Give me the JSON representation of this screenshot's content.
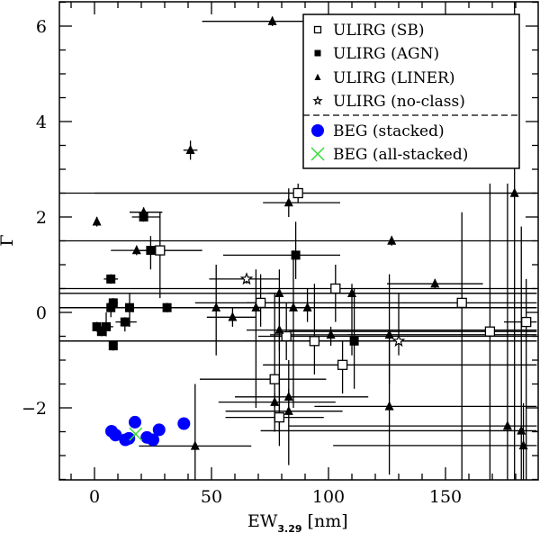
{
  "chart_data": {
    "type": "scatter",
    "title": "",
    "xlabel": "EW",
    "xlabel_sub": "3.29",
    "xlabel_unit": "[nm]",
    "ylabel": "Γ",
    "xlim": [
      -15,
      189
    ],
    "ylim": [
      -3.5,
      6.5
    ],
    "xticks_major": [
      0,
      50,
      100,
      150
    ],
    "yticks_major": [
      -2,
      0,
      2,
      4,
      6
    ],
    "grid": false,
    "legend_position": "upper right",
    "legend": [
      {
        "label": "ULIRG (SB)",
        "marker": "open-square",
        "color": "#000000"
      },
      {
        "label": "ULIRG (AGN)",
        "marker": "filled-square",
        "color": "#000000"
      },
      {
        "label": "ULIRG (LINER)",
        "marker": "filled-triangle",
        "color": "#000000"
      },
      {
        "label": "ULIRG (no-class)",
        "marker": "open-star",
        "color": "#000000"
      },
      {
        "label": "BEG (stacked)",
        "marker": "filled-circle",
        "color": "#0000ff"
      },
      {
        "label": "BEG (all-stacked)",
        "marker": "cross",
        "color": "#33dd33"
      }
    ],
    "series": [
      {
        "name": "ULIRG (SB)",
        "marker": "open-square",
        "points": [
          {
            "x": 28,
            "y": 1.3,
            "xerr": [
              18,
              46
            ],
            "yerr": [
              0.3,
              2.1
            ]
          },
          {
            "x": 87,
            "y": 2.5,
            "xerr": [
              0,
              189
            ],
            "yerr": [
              2.3,
              2.7
            ]
          },
          {
            "x": 71,
            "y": 0.2,
            "xerr": [
              65,
              85
            ],
            "yerr": [
              -0.3,
              0.8
            ]
          },
          {
            "x": 103,
            "y": 0.5,
            "xerr": [
              -15,
              189
            ],
            "yerr": [
              -0.2,
              1.0
            ]
          },
          {
            "x": 94,
            "y": -0.6,
            "xerr": [
              64,
              110
            ],
            "yerr": [
              -1.3,
              0.6
            ]
          },
          {
            "x": 82,
            "y": -0.5,
            "xerr": [
              70,
              189
            ],
            "yerr": [
              -1.0,
              0.2
            ]
          },
          {
            "x": 106,
            "y": -1.1,
            "xerr": [
              72,
              189
            ],
            "yerr": [
              -1.7,
              -0.6
            ]
          },
          {
            "x": 77,
            "y": -1.4,
            "xerr": [
              45,
              99
            ],
            "yerr": [
              -2.5,
              0.4
            ]
          },
          {
            "x": 79,
            "y": -2.2,
            "xerr": [
              56,
              98
            ],
            "yerr": [
              -2.8,
              -1.5
            ]
          },
          {
            "x": 157,
            "y": 0.2,
            "xerr": [
              43,
              189
            ],
            "yerr": [
              -3.5,
              2.1
            ]
          },
          {
            "x": 169,
            "y": -0.4,
            "xerr": [
              83,
              189
            ],
            "yerr": [
              -3.5,
              2.7
            ]
          },
          {
            "x": 184.5,
            "y": -0.2,
            "xerr": [
              175,
              189
            ],
            "yerr": [
              -3.5,
              0.7
            ]
          }
        ]
      },
      {
        "name": "ULIRG (AGN)",
        "marker": "filled-square",
        "points": [
          {
            "x": 21,
            "y": 2.0,
            "xerr": [
              16,
              28
            ],
            "yerr": [
              1.9,
              2.1
            ]
          },
          {
            "x": 24,
            "y": 1.3,
            "xerr": [
              18,
              30
            ],
            "yerr": [
              0.9,
              1.6
            ]
          },
          {
            "x": 7,
            "y": 0.7,
            "xerr": [
              4,
              10
            ],
            "yerr": [
              0.6,
              0.8
            ]
          },
          {
            "x": 8,
            "y": 0.2,
            "xerr": [
              6,
              10
            ],
            "yerr": [
              0.1,
              0.3
            ]
          },
          {
            "x": 7,
            "y": 0.1,
            "xerr": [
              5,
              9
            ],
            "yerr": [
              -0.1,
              0.2
            ]
          },
          {
            "x": 15,
            "y": 0.1,
            "xerr": [
              11,
              20
            ],
            "yerr": [
              -0.3,
              0.4
            ]
          },
          {
            "x": 31,
            "y": 0.1,
            "xerr": [
              26,
              61
            ],
            "yerr": [
              0.0,
              0.2
            ]
          },
          {
            "x": 13,
            "y": -0.2,
            "xerr": [
              9,
              18
            ],
            "yerr": [
              -0.4,
              -0.1
            ]
          },
          {
            "x": 1,
            "y": -0.3,
            "xerr": [
              0,
              3
            ],
            "yerr": [
              -0.4,
              -0.2
            ]
          },
          {
            "x": 3,
            "y": -0.4,
            "xerr": [
              1,
              5
            ],
            "yerr": [
              -0.5,
              -0.3
            ]
          },
          {
            "x": 5,
            "y": -0.3,
            "xerr": [
              3,
              8
            ],
            "yerr": [
              -0.5,
              0.0
            ]
          },
          {
            "x": 8,
            "y": -0.7,
            "xerr": [
              7,
              9
            ],
            "yerr": [
              -0.8,
              -0.6
            ]
          },
          {
            "x": 86,
            "y": 1.2,
            "xerr": [
              55,
              105
            ],
            "yerr": [
              0.7,
              1.9
            ]
          },
          {
            "x": 111,
            "y": -0.6,
            "xerr": [
              -15,
              189
            ],
            "yerr": [
              -1.6,
              0.5
            ]
          }
        ]
      },
      {
        "name": "ULIRG (LINER)",
        "marker": "filled-triangle",
        "points": [
          {
            "x": 76,
            "y": 6.1,
            "xerr": [
              46,
              89
            ],
            "yerr": [
              6.0,
              6.2
            ]
          },
          {
            "x": 41,
            "y": 3.4,
            "xerr": [
              38,
              44
            ],
            "yerr": [
              3.2,
              3.6
            ]
          },
          {
            "x": 1,
            "y": 1.9,
            "xerr": [
              0,
              2
            ],
            "yerr": [
              1.8,
              2.0
            ]
          },
          {
            "x": 21,
            "y": 2.1,
            "xerr": [
              15,
              29
            ],
            "yerr": [
              2.0,
              2.2
            ]
          },
          {
            "x": 18,
            "y": 1.3,
            "xerr": [
              7,
              46
            ],
            "yerr": [
              1.2,
              1.4
            ]
          },
          {
            "x": 83,
            "y": 2.3,
            "xerr": [
              72,
              105
            ],
            "yerr": [
              2.0,
              2.6
            ]
          },
          {
            "x": 127,
            "y": 1.5,
            "xerr": [
              -15,
              189
            ],
            "yerr": [
              1.4,
              1.6
            ]
          },
          {
            "x": 145.5,
            "y": 0.6,
            "xerr": [
              125,
              166
            ],
            "yerr": [
              0.5,
              0.7
            ]
          },
          {
            "x": 52,
            "y": 0.1,
            "xerr": [
              -15,
              189
            ],
            "yerr": [
              -0.9,
              1.0
            ]
          },
          {
            "x": 69,
            "y": 0.1,
            "xerr": [
              -15,
              189
            ],
            "yerr": [
              -2.0,
              0.9
            ]
          },
          {
            "x": 59,
            "y": -0.1,
            "xerr": [
              48,
              69
            ],
            "yerr": [
              -0.3,
              0.1
            ]
          },
          {
            "x": 79,
            "y": 0.4,
            "xerr": [
              74,
              189
            ],
            "yerr": [
              -0.8,
              0.9
            ]
          },
          {
            "x": 85,
            "y": 0.1,
            "xerr": [
              -15,
              189
            ],
            "yerr": [
              -2.0,
              1.3
            ]
          },
          {
            "x": 91,
            "y": 0.1,
            "xerr": [
              75,
              189
            ],
            "yerr": [
              -0.2,
              0.5
            ]
          },
          {
            "x": 110,
            "y": 0.4,
            "xerr": [
              -15,
              189
            ],
            "yerr": [
              -0.9,
              0.6
            ]
          },
          {
            "x": 79,
            "y": -0.37,
            "xerr": [
              65,
              189
            ],
            "yerr": [
              -2.5,
              0.3
            ]
          },
          {
            "x": 101,
            "y": -0.47,
            "xerr": [
              75,
              189
            ],
            "yerr": [
              -0.7,
              -0.3
            ]
          },
          {
            "x": 126,
            "y": -0.47,
            "xerr": [
              108,
              189
            ],
            "yerr": [
              -1.5,
              0.8
            ]
          },
          {
            "x": 83,
            "y": -1.77,
            "xerr": [
              60,
              117
            ],
            "yerr": [
              -2.0,
              -1.6
            ]
          },
          {
            "x": 77,
            "y": -1.88,
            "xerr": [
              53,
              103
            ],
            "yerr": [
              -2.0,
              -1.7
            ]
          },
          {
            "x": 83,
            "y": -2.07,
            "xerr": [
              56,
              106
            ],
            "yerr": [
              -3.2,
              -1.0
            ]
          },
          {
            "x": 126,
            "y": -1.97,
            "xerr": [
              94,
              189
            ],
            "yerr": [
              -3.4,
              -0.6
            ]
          },
          {
            "x": 43,
            "y": -2.8,
            "xerr": [
              19,
              67
            ],
            "yerr": [
              -3.5,
              -1.5
            ]
          },
          {
            "x": 179.5,
            "y": 2.5,
            "xerr": [
              -15,
              189
            ],
            "yerr": [
              -3.5,
              6.5
            ]
          },
          {
            "x": 176.5,
            "y": -2.38,
            "xerr": [
              83,
              189
            ],
            "yerr": [
              -3.5,
              2.7
            ]
          },
          {
            "x": 182.4,
            "y": -2.48,
            "xerr": [
              71,
              189
            ],
            "yerr": [
              -3.5,
              1.8
            ]
          },
          {
            "x": 183.3,
            "y": -2.79,
            "xerr": [
              102,
              189
            ],
            "yerr": [
              -3.5,
              -1.9
            ]
          }
        ]
      },
      {
        "name": "ULIRG (no-class)",
        "marker": "open-star",
        "points": [
          {
            "x": 65,
            "y": 0.7,
            "xerr": [
              49,
              79
            ],
            "yerr": [
              0.6,
              0.8
            ]
          },
          {
            "x": 130,
            "y": -0.6,
            "xerr": [
              -15,
              189
            ],
            "yerr": [
              -0.9,
              0.4
            ]
          }
        ]
      },
      {
        "name": "BEG (stacked)",
        "marker": "filled-circle",
        "points": [
          {
            "x": 7.3,
            "y": -2.49
          },
          {
            "x": 9.0,
            "y": -2.57
          },
          {
            "x": 13.2,
            "y": -2.67
          },
          {
            "x": 14.7,
            "y": -2.64
          },
          {
            "x": 17.3,
            "y": -2.3
          },
          {
            "x": 22.4,
            "y": -2.62
          },
          {
            "x": 25.0,
            "y": -2.67
          },
          {
            "x": 27.6,
            "y": -2.46
          },
          {
            "x": 38.2,
            "y": -2.33
          }
        ]
      },
      {
        "name": "BEG (all-stacked)",
        "marker": "cross",
        "points": [
          {
            "x": 17.6,
            "y": -2.55
          }
        ]
      }
    ]
  },
  "colors": {
    "ulirg": "#000000",
    "beg_stacked": "#0000ff",
    "beg_all_stacked": "#33dd33",
    "background": "#ffffff"
  }
}
